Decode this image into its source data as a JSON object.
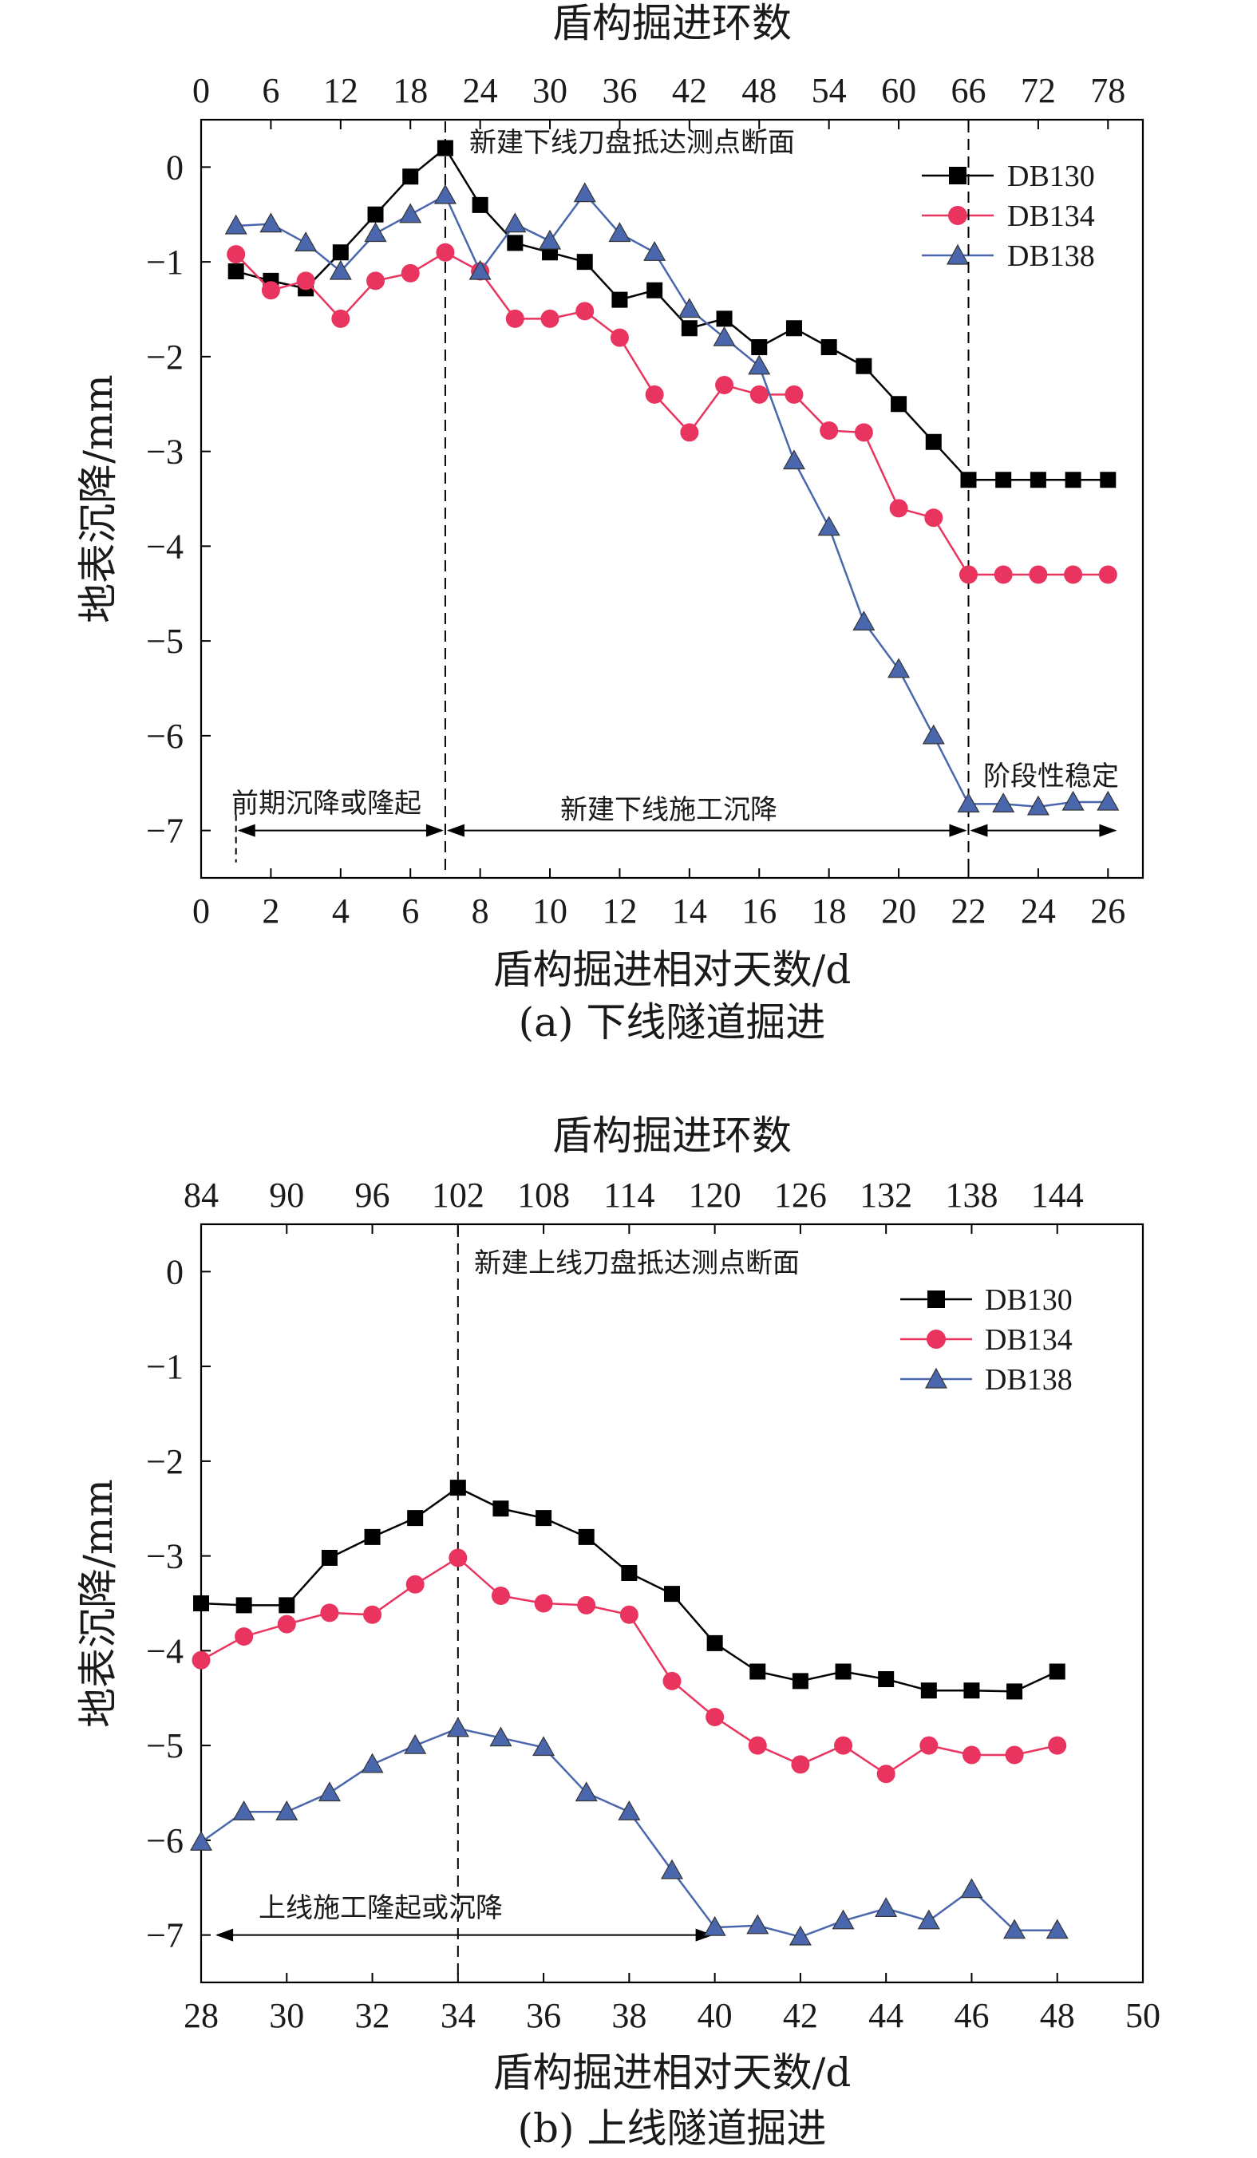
{
  "chart_data": [
    {
      "type": "line",
      "panel": "a",
      "caption": "(a) 下线隧道掘进",
      "xlabel": "盾构掘进相对天数/d",
      "ylabel": "地表沉降/mm",
      "x2label": "盾构掘进环数",
      "xlim": [
        0,
        27
      ],
      "ylim": [
        -7.5,
        0.5
      ],
      "xticks": [
        0,
        2,
        4,
        6,
        8,
        10,
        12,
        14,
        16,
        18,
        20,
        22,
        24,
        26
      ],
      "yticks": [
        0,
        -1,
        -2,
        -3,
        -4,
        -5,
        -6,
        -7
      ],
      "ytick_labels": [
        "0",
        "−1",
        "−2",
        "−3",
        "−4",
        "−5",
        "−6",
        "−7"
      ],
      "x2ticks": [
        0,
        6,
        12,
        18,
        24,
        30,
        36,
        42,
        48,
        54,
        60,
        66,
        72,
        78
      ],
      "x2_per_day": 3,
      "x": [
        1,
        2,
        3,
        4,
        5,
        6,
        7,
        8,
        9,
        10,
        11,
        12,
        13,
        14,
        15,
        16,
        17,
        18,
        19,
        20,
        21,
        22,
        23,
        24,
        25,
        26
      ],
      "series": [
        {
          "name": "DB130",
          "color": "#000000",
          "marker": "square",
          "values": [
            -1.1,
            -1.2,
            -1.28,
            -0.9,
            -0.5,
            -0.1,
            0.2,
            -0.4,
            -0.8,
            -0.9,
            -1.0,
            -1.4,
            -1.3,
            -1.7,
            -1.6,
            -1.9,
            -1.7,
            -1.9,
            -2.1,
            -2.5,
            -2.9,
            -3.3,
            -3.3,
            -3.3,
            -3.3,
            -3.3
          ]
        },
        {
          "name": "DB134",
          "color": "#e8345e",
          "marker": "circle",
          "values": [
            -0.92,
            -1.3,
            -1.2,
            -1.6,
            -1.2,
            -1.12,
            -0.9,
            -1.1,
            -1.6,
            -1.6,
            -1.52,
            -1.8,
            -2.4,
            -2.8,
            -2.3,
            -2.4,
            -2.4,
            -2.78,
            -2.8,
            -3.6,
            -3.7,
            -4.3,
            -4.3,
            -4.3,
            -4.3,
            -4.3
          ]
        },
        {
          "name": "DB138",
          "color": "#4a67ae",
          "marker": "triangle",
          "values": [
            -0.62,
            -0.6,
            -0.8,
            -1.1,
            -0.7,
            -0.5,
            -0.3,
            -1.1,
            -0.6,
            -0.78,
            -0.28,
            -0.7,
            -0.9,
            -1.5,
            -1.8,
            -2.1,
            -3.1,
            -3.8,
            -4.8,
            -5.3,
            -6.0,
            -6.72,
            -6.72,
            -6.75,
            -6.7,
            -6.7
          ]
        }
      ],
      "vlines": [
        7,
        22
      ],
      "vline_label": "新建下线刀盘抵达测点断面",
      "phases": [
        {
          "label": "前期沉降或隆起",
          "from": 1,
          "to": 7
        },
        {
          "label": "新建下线施工沉降",
          "from": 7,
          "to": 22
        },
        {
          "label": "阶段性稳定",
          "from": 22,
          "to": 26.3
        }
      ],
      "phase_y": -7.0,
      "legend_loc": "top-right"
    },
    {
      "type": "line",
      "panel": "b",
      "caption": "(b) 上线隧道掘进",
      "xlabel": "盾构掘进相对天数/d",
      "ylabel": "地表沉降/mm",
      "x2label": "盾构掘进环数",
      "xlim": [
        28,
        50
      ],
      "ylim": [
        -7.5,
        0.5
      ],
      "xticks": [
        28,
        30,
        32,
        34,
        36,
        38,
        40,
        42,
        44,
        46,
        48,
        50
      ],
      "yticks": [
        0,
        -1,
        -2,
        -3,
        -4,
        -5,
        -6,
        -7
      ],
      "ytick_labels": [
        "0",
        "−1",
        "−2",
        "−3",
        "−4",
        "−5",
        "−6",
        "−7"
      ],
      "x2ticks": [
        84,
        90,
        96,
        102,
        108,
        114,
        120,
        126,
        132,
        138,
        144
      ],
      "x2_per_day": 3,
      "x": [
        28,
        29,
        30,
        31,
        32,
        33,
        34,
        35,
        36,
        37,
        38,
        39,
        40,
        41,
        42,
        43,
        44,
        45,
        46,
        47,
        48
      ],
      "series": [
        {
          "name": "DB130",
          "color": "#000000",
          "marker": "square",
          "values": [
            -3.5,
            -3.52,
            -3.52,
            -3.02,
            -2.8,
            -2.6,
            -2.28,
            -2.5,
            -2.6,
            -2.8,
            -3.18,
            -3.4,
            -3.92,
            -4.22,
            -4.32,
            -4.22,
            -4.3,
            -4.42,
            -4.42,
            -4.43,
            -4.22
          ]
        },
        {
          "name": "DB134",
          "color": "#e8345e",
          "marker": "circle",
          "values": [
            -4.1,
            -3.85,
            -3.72,
            -3.6,
            -3.62,
            -3.3,
            -3.02,
            -3.42,
            -3.5,
            -3.52,
            -3.62,
            -4.32,
            -4.7,
            -5.0,
            -5.2,
            -5.0,
            -5.3,
            -5.0,
            -5.1,
            -5.1,
            -5.0
          ]
        },
        {
          "name": "DB138",
          "color": "#4a67ae",
          "marker": "triangle",
          "values": [
            -6.02,
            -5.7,
            -5.7,
            -5.5,
            -5.2,
            -5.0,
            -4.82,
            -4.92,
            -5.02,
            -5.5,
            -5.7,
            -6.32,
            -6.92,
            -6.9,
            -7.02,
            -6.85,
            -6.72,
            -6.85,
            -6.52,
            -6.95,
            -6.95
          ]
        }
      ],
      "vlines": [
        34
      ],
      "vline_label": "新建上线刀盘抵达测点断面",
      "phases": [
        {
          "label": "上线施工隆起或沉降",
          "from": 28.3,
          "to": 40
        }
      ],
      "phase_y": -7.0,
      "legend_loc": "top-right"
    }
  ]
}
